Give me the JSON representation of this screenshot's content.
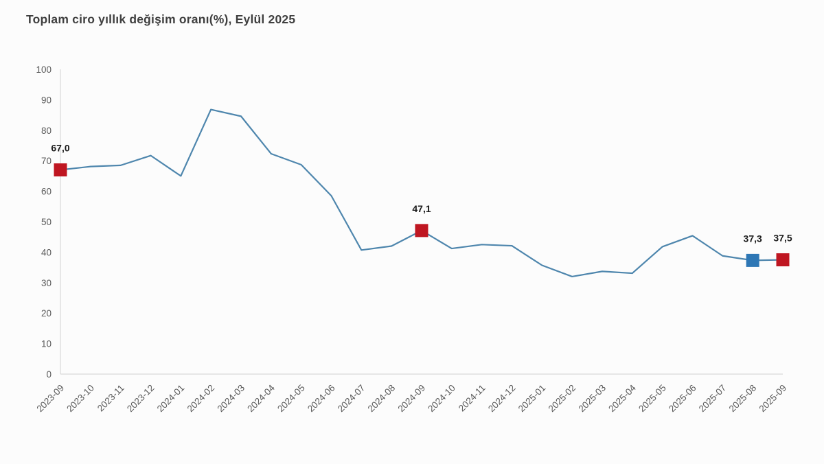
{
  "header": {
    "title": "Toplam ciro yıllık değişim oranı(%), Eylül 2025"
  },
  "chart_data": {
    "type": "line",
    "title": "Toplam ciro yıllık değişim oranı(%), Eylül 2025",
    "xlabel": "",
    "ylabel": "",
    "ylim": [
      0,
      100
    ],
    "yticks": [
      0,
      10,
      20,
      30,
      40,
      50,
      60,
      70,
      80,
      90,
      100
    ],
    "grid": false,
    "legend": false,
    "categories": [
      "2023-09",
      "2023-10",
      "2023-11",
      "2023-12",
      "2024-01",
      "2024-02",
      "2024-03",
      "2024-04",
      "2024-05",
      "2024-06",
      "2024-07",
      "2024-08",
      "2024-09",
      "2024-10",
      "2024-11",
      "2024-12",
      "2025-01",
      "2025-02",
      "2025-03",
      "2025-04",
      "2025-05",
      "2025-06",
      "2025-07",
      "2025-08",
      "2025-09"
    ],
    "values": [
      67.0,
      68.1,
      68.5,
      71.7,
      65.0,
      86.8,
      84.6,
      72.3,
      68.7,
      58.5,
      40.7,
      42.0,
      47.1,
      41.2,
      42.5,
      42.1,
      35.7,
      32.0,
      33.7,
      33.1,
      41.8,
      45.4,
      38.8,
      37.3,
      37.5
    ],
    "annotations": [
      {
        "category": "2023-09",
        "value": 67.0,
        "label": "67,0",
        "marker_color": "#bf1621"
      },
      {
        "category": "2024-09",
        "value": 47.1,
        "label": "47,1",
        "marker_color": "#bf1621"
      },
      {
        "category": "2025-08",
        "value": 37.3,
        "label": "37,3",
        "marker_color": "#2e77b5"
      },
      {
        "category": "2025-09",
        "value": 37.5,
        "label": "37,5",
        "marker_color": "#bf1621"
      }
    ],
    "colors": {
      "line": "#4e86ad",
      "axis": "#d9d9d9",
      "tick_label": "#595959",
      "annotation_text": "#1a1a1a",
      "title_text": "#3f3f3f"
    }
  }
}
